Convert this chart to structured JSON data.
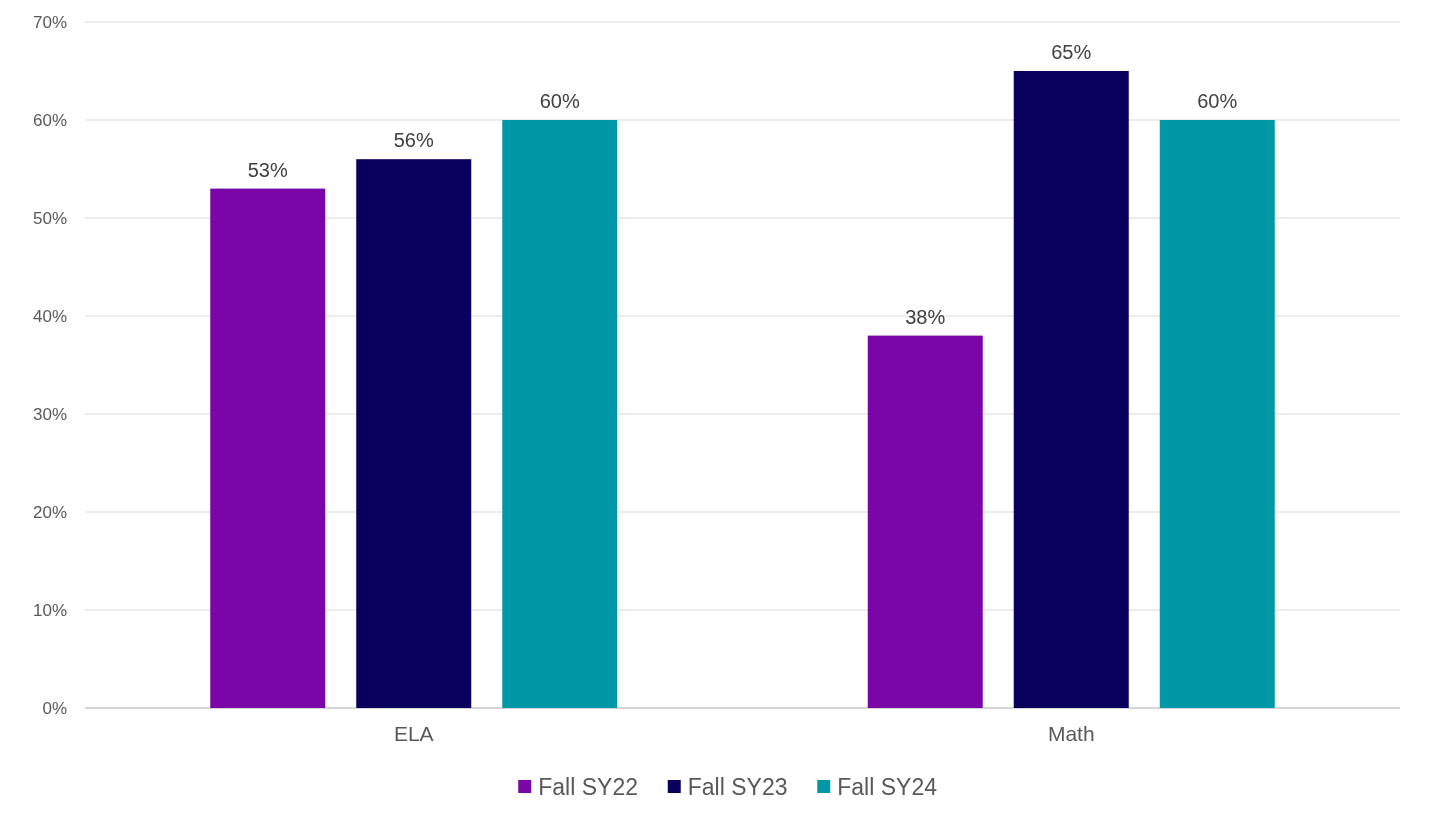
{
  "chart_data": {
    "type": "bar",
    "categories": [
      "ELA",
      "Math"
    ],
    "series": [
      {
        "name": "Fall SY22",
        "color": "#7a06a8",
        "values": [
          53,
          38
        ],
        "value_labels": [
          "53%",
          "38%"
        ]
      },
      {
        "name": "Fall SY23",
        "color": "#08005c",
        "values": [
          56,
          65
        ],
        "value_labels": [
          "56%",
          "65%"
        ]
      },
      {
        "name": "Fall SY24",
        "color": "#0097a6",
        "values": [
          60,
          60
        ],
        "value_labels": [
          "60%",
          "60%"
        ]
      }
    ],
    "ylim": [
      0,
      70
    ],
    "yticks": [
      {
        "value": 0,
        "label": "0%"
      },
      {
        "value": 10,
        "label": "10%"
      },
      {
        "value": 20,
        "label": "20%"
      },
      {
        "value": 30,
        "label": "30%"
      },
      {
        "value": 40,
        "label": "40%"
      },
      {
        "value": 50,
        "label": "50%"
      },
      {
        "value": 60,
        "label": "60%"
      },
      {
        "value": 70,
        "label": "70%"
      }
    ],
    "grid": "y",
    "legend": "bottom"
  }
}
